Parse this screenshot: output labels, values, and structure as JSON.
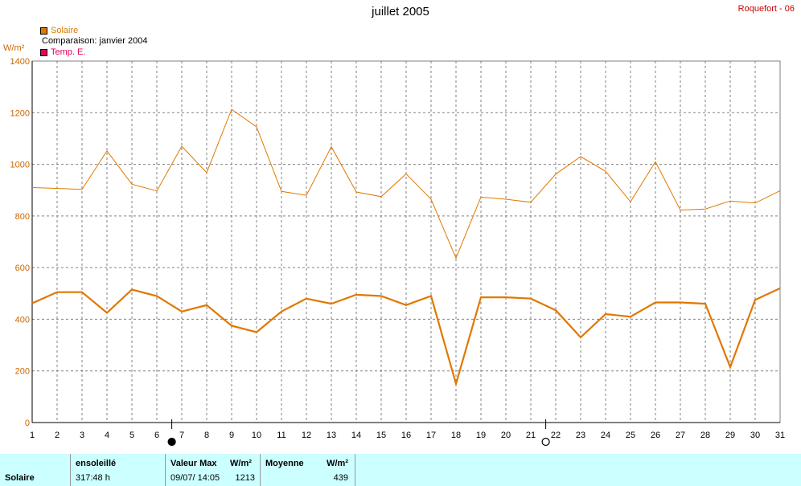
{
  "title": "juillet 2005",
  "station": "Roquefort - 06",
  "legend": {
    "solaire": "Solaire",
    "comparaison": "Comparaison: janvier 2004",
    "temp": "Temp. E."
  },
  "colors": {
    "solaire": "#e07800",
    "temp": "#e0005a",
    "grid": "#808080",
    "footer_bg": "#ccffff",
    "station": "#cc0000"
  },
  "chart_data": {
    "type": "line",
    "ylabel": "W/m²",
    "ylim": [
      0,
      1400
    ],
    "yticks": [
      0,
      200,
      400,
      600,
      800,
      1000,
      1200,
      1400
    ],
    "x": [
      1,
      2,
      3,
      4,
      5,
      6,
      7,
      8,
      9,
      10,
      11,
      12,
      13,
      14,
      15,
      16,
      17,
      18,
      19,
      20,
      21,
      22,
      23,
      24,
      25,
      26,
      27,
      28,
      29,
      30,
      31
    ],
    "series": [
      {
        "name": "Solaire",
        "style": "thick",
        "values": [
          462,
          505,
          505,
          425,
          515,
          490,
          430,
          455,
          375,
          350,
          430,
          480,
          460,
          495,
          490,
          455,
          490,
          150,
          485,
          485,
          480,
          435,
          330,
          420,
          410,
          465,
          465,
          460,
          215,
          475,
          520
        ]
      },
      {
        "name": "Comparaison: janvier 2004",
        "style": "thin",
        "values": [
          910,
          907,
          903,
          1052,
          923,
          897,
          1070,
          968,
          1213,
          1145,
          895,
          880,
          1068,
          893,
          875,
          963,
          865,
          637,
          873,
          865,
          853,
          962,
          1030,
          973,
          855,
          1010,
          823,
          827,
          858,
          850,
          898
        ]
      }
    ],
    "grid": true,
    "moon_phases": [
      {
        "day": 6.6,
        "phase": "new"
      },
      {
        "day": 21.6,
        "phase": "full"
      }
    ]
  },
  "footer": {
    "row_label": "Solaire",
    "col1_label": "ensoleillé",
    "col1_value": "317:48 h",
    "col2_label": "Valeur Max",
    "col2_unit": "W/m²",
    "col2_date": "09/07/  14:05",
    "col2_value": "1213",
    "col3_label": "Moyenne",
    "col3_unit": "W/m²",
    "col3_value": "439"
  }
}
